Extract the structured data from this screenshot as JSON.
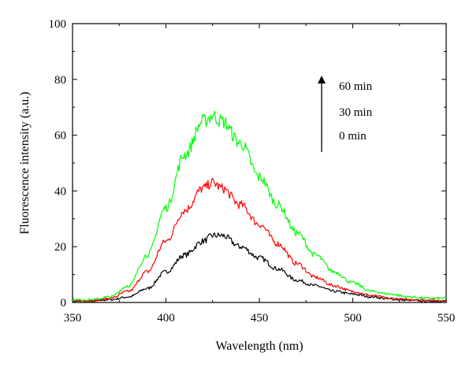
{
  "chart_data": {
    "type": "line",
    "xlabel": "Wavelength (nm)",
    "ylabel": "Fluorescence intensity (a.u.)",
    "xlim": [
      350,
      550
    ],
    "ylim": [
      0,
      100
    ],
    "x_ticks": [
      350,
      400,
      450,
      500,
      550
    ],
    "y_ticks": [
      0,
      20,
      40,
      60,
      80,
      100
    ],
    "grid": false,
    "x": [
      350,
      360,
      370,
      380,
      390,
      400,
      410,
      420,
      425,
      430,
      440,
      450,
      460,
      470,
      480,
      490,
      500,
      510,
      520,
      530,
      540,
      550
    ],
    "series": [
      {
        "color": "#000000",
        "values": [
          0.5,
          0.5,
          1,
          2,
          5,
          11,
          17,
          22,
          24,
          24,
          20,
          16,
          12,
          8,
          6,
          4,
          3,
          2,
          1.2,
          0.8,
          0.5,
          0.5
        ]
      },
      {
        "color": "#ff0000",
        "values": [
          0.5,
          0.5,
          1.5,
          4,
          11,
          22,
          33,
          41,
          43,
          41,
          35,
          28,
          21,
          14,
          9,
          6,
          4,
          2.5,
          1.5,
          1,
          0.8,
          0.7
        ]
      },
      {
        "color": "#00ff00",
        "values": [
          1,
          1,
          2,
          6,
          17,
          34,
          53,
          65,
          67,
          65,
          57,
          45,
          35,
          25,
          17,
          11,
          7,
          4,
          3,
          2,
          1.5,
          1.5
        ]
      }
    ],
    "annotations": {
      "labels": [
        "60 min",
        "30 min",
        "0 min"
      ],
      "arrow": "up"
    }
  }
}
